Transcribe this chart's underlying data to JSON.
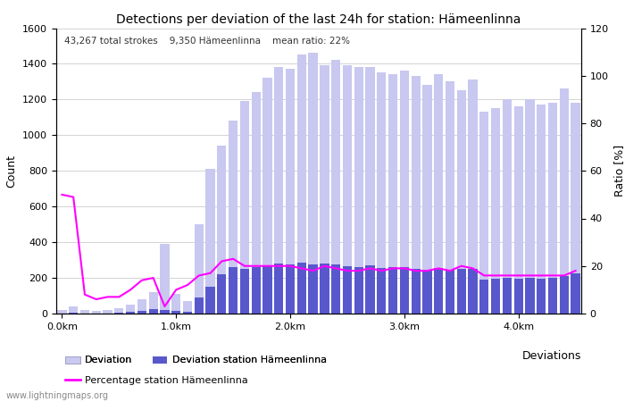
{
  "title": "Detections per deviation of the last 24h for station: Hämeenlinna",
  "subtitle": "43,267 total strokes    9,350 Hämeenlinna    mean ratio: 22%",
  "ylabel_left": "Count",
  "ylabel_right": "Ratio [%]",
  "x_label_bottom": "Deviations",
  "ylim_left": [
    0,
    1600
  ],
  "ylim_right": [
    0,
    120
  ],
  "yticks_left": [
    0,
    200,
    400,
    600,
    800,
    1000,
    1200,
    1400,
    1600
  ],
  "yticks_right": [
    0,
    20,
    40,
    60,
    80,
    100,
    120
  ],
  "xtick_labels": [
    "0.0km",
    "1.0km",
    "2.0km",
    "3.0km",
    "4.0km"
  ],
  "xtick_positions": [
    0,
    10,
    20,
    30,
    40
  ],
  "bar_width": 0.8,
  "bar_color_light": "#c8c8f0",
  "bar_color_dark": "#5858cc",
  "line_color": "#ff00ff",
  "background_color": "#ffffff",
  "grid_color": "#cccccc",
  "n_bars": 46,
  "dev_total": [
    20,
    40,
    20,
    15,
    20,
    30,
    50,
    80,
    120,
    390,
    110,
    70,
    500,
    810,
    940,
    1080,
    1190,
    1240,
    1320,
    1380,
    1370,
    1450,
    1460,
    1390,
    1420,
    1390,
    1380,
    1380,
    1350,
    1340,
    1360,
    1330,
    1280,
    1340,
    1300,
    1250,
    1310,
    1130,
    1150,
    1200,
    1160,
    1200,
    1170,
    1180,
    1260,
    1180
  ],
  "dev_station": [
    2,
    5,
    2,
    2,
    2,
    5,
    10,
    15,
    25,
    20,
    15,
    10,
    90,
    150,
    220,
    260,
    250,
    260,
    270,
    280,
    275,
    285,
    275,
    280,
    275,
    265,
    260,
    270,
    255,
    260,
    260,
    250,
    240,
    255,
    245,
    250,
    250,
    190,
    195,
    200,
    195,
    200,
    195,
    200,
    210,
    225
  ],
  "ratio": [
    50,
    49,
    8,
    6,
    7,
    7,
    10,
    14,
    15,
    3,
    10,
    12,
    16,
    17,
    22,
    23,
    20,
    20,
    20,
    20,
    20,
    19,
    18,
    20,
    19,
    18,
    18,
    19,
    18,
    19,
    19,
    18,
    18,
    19,
    18,
    20,
    19,
    16,
    16,
    16,
    16,
    16,
    16,
    16,
    16,
    18
  ]
}
